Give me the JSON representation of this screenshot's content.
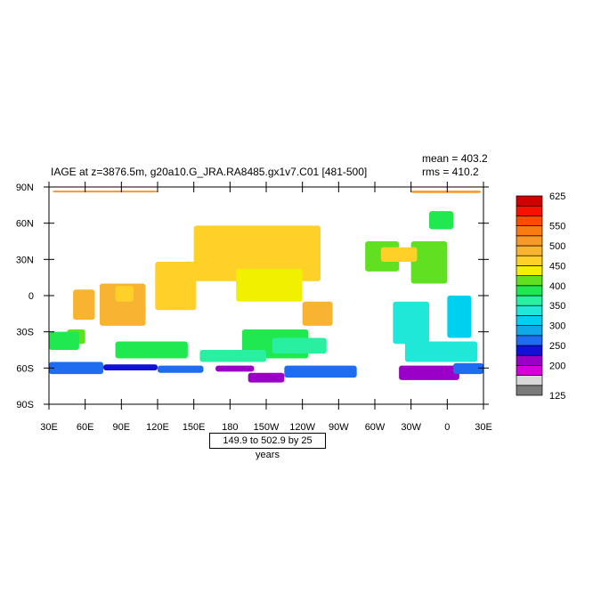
{
  "chart_data": {
    "type": "heatmap",
    "title": "IAGE at z=3876.5m, g20a10.G_JRA.RA8485.gx1v7.C01 [481-500]",
    "stats": {
      "mean": "mean = 403.2",
      "rms": "rms = 410.2"
    },
    "subtitle_box": "149.9 to 502.9 by 25 years",
    "x_ticks": [
      "30E",
      "60E",
      "90E",
      "120E",
      "150E",
      "180",
      "150W",
      "120W",
      "90W",
      "60W",
      "30W",
      "0",
      "30E"
    ],
    "y_ticks": [
      "90N",
      "60N",
      "30N",
      "0",
      "30S",
      "60S",
      "90S"
    ],
    "xlim": [
      30,
      390
    ],
    "ylim": [
      -90,
      90
    ],
    "colorbar": {
      "labels": [
        "625",
        "550",
        "500",
        "450",
        "400",
        "350",
        "300",
        "250",
        "200",
        "125"
      ],
      "levels": [
        125,
        150,
        175,
        200,
        225,
        250,
        275,
        300,
        325,
        350,
        375,
        400,
        425,
        450,
        475,
        500,
        525,
        550,
        575,
        600,
        625
      ],
      "colors": [
        "#7a7a7a",
        "#d8d8d8",
        "#d800d8",
        "#9a00c8",
        "#1010d8",
        "#1e6cf0",
        "#10a8e8",
        "#00d0f0",
        "#20e8d8",
        "#28f0a0",
        "#20e850",
        "#60e020",
        "#f0f000",
        "#ffd028",
        "#f8b430",
        "#f89828",
        "#f87c10",
        "#ff4a00",
        "#f81000",
        "#d00000"
      ]
    },
    "regions": [
      {
        "name": "arctic-strip-west",
        "value": 500,
        "lon": [
          33,
          120
        ],
        "lat": [
          87,
          85.5
        ]
      },
      {
        "name": "arctic-strip-east",
        "value": 500,
        "lon": [
          330,
          388
        ],
        "lat": [
          87,
          85
        ]
      },
      {
        "name": "north-pacific",
        "value": 470,
        "lon": [
          150,
          255
        ],
        "lat": [
          12,
          58
        ]
      },
      {
        "name": "eq-pacific-core",
        "value": 440,
        "lon": [
          185,
          240
        ],
        "lat": [
          -5,
          22
        ]
      },
      {
        "name": "central-pacific-west",
        "value": 470,
        "lon": [
          118,
          152
        ],
        "lat": [
          -12,
          28
        ]
      },
      {
        "name": "indian-ocean-west",
        "value": 490,
        "lon": [
          50,
          68
        ],
        "lat": [
          5,
          -20
        ]
      },
      {
        "name": "indian-ocean-central",
        "value": 490,
        "lon": [
          72,
          110
        ],
        "lat": [
          -25,
          10
        ]
      },
      {
        "name": "indian-ocean-ne",
        "value": 470,
        "lon": [
          85,
          100
        ],
        "lat": [
          -5,
          8
        ]
      },
      {
        "name": "indian-ocean-south",
        "value": 410,
        "lon": [
          45,
          60
        ],
        "lat": [
          -40,
          -28
        ]
      },
      {
        "name": "west-australia",
        "value": 380,
        "lon": [
          30,
          55
        ],
        "lat": [
          -45,
          -30
        ]
      },
      {
        "name": "south-indian",
        "value": 380,
        "lon": [
          85,
          145
        ],
        "lat": [
          -52,
          -38
        ]
      },
      {
        "name": "se-pacific-green",
        "value": 390,
        "lon": [
          190,
          245
        ],
        "lat": [
          -52,
          -28
        ]
      },
      {
        "name": "se-pacific-cyan",
        "value": 360,
        "lon": [
          155,
          210
        ],
        "lat": [
          -55,
          -45
        ]
      },
      {
        "name": "se-pacific-tongue",
        "value": 350,
        "lon": [
          215,
          260
        ],
        "lat": [
          -48,
          -35
        ]
      },
      {
        "name": "peru-basin",
        "value": 480,
        "lon": [
          240,
          265
        ],
        "lat": [
          -25,
          -5
        ]
      },
      {
        "name": "brazil-basin",
        "value": 330,
        "lon": [
          315,
          345
        ],
        "lat": [
          -40,
          -5
        ]
      },
      {
        "name": "angola-basin",
        "value": 320,
        "lon": [
          360,
          380
        ],
        "lat": [
          -35,
          0
        ]
      },
      {
        "name": "cape-basin",
        "value": 330,
        "lon": [
          325,
          385
        ],
        "lat": [
          -55,
          -38
        ]
      },
      {
        "name": "north-atlantic-west",
        "value": 400,
        "lon": [
          292,
          320
        ],
        "lat": [
          20,
          45
        ]
      },
      {
        "name": "north-atlantic-east",
        "value": 410,
        "lon": [
          330,
          360
        ],
        "lat": [
          10,
          45
        ]
      },
      {
        "name": "north-atlantic-core",
        "value": 450,
        "lon": [
          305,
          335
        ],
        "lat": [
          28,
          40
        ]
      },
      {
        "name": "norwegian-sea",
        "value": 380,
        "lon": [
          345,
          365
        ],
        "lat": [
          55,
          70
        ]
      },
      {
        "name": "southern-ocean-indian",
        "value": 270,
        "lon": [
          30,
          75
        ],
        "lat": [
          -65,
          -55
        ]
      },
      {
        "name": "kerguelen",
        "value": 240,
        "lon": [
          75,
          120
        ],
        "lat": [
          -62,
          -57
        ]
      },
      {
        "name": "aus-antarctic",
        "value": 250,
        "lon": [
          120,
          158
        ],
        "lat": [
          -64,
          -58
        ]
      },
      {
        "name": "ross-sea",
        "value": 200,
        "lon": [
          168,
          200
        ],
        "lat": [
          -63,
          -58
        ]
      },
      {
        "name": "amundsen-basin",
        "value": 210,
        "lon": [
          195,
          225
        ],
        "lat": [
          -72,
          -64
        ]
      },
      {
        "name": "bellingshausen",
        "value": 270,
        "lon": [
          225,
          285
        ],
        "lat": [
          -68,
          -58
        ]
      },
      {
        "name": "weddell-sea",
        "value": 200,
        "lon": [
          320,
          370
        ],
        "lat": [
          -70,
          -58
        ]
      },
      {
        "name": "enderby-basin",
        "value": 250,
        "lon": [
          365,
          390
        ],
        "lat": [
          -65,
          -56
        ]
      }
    ]
  }
}
